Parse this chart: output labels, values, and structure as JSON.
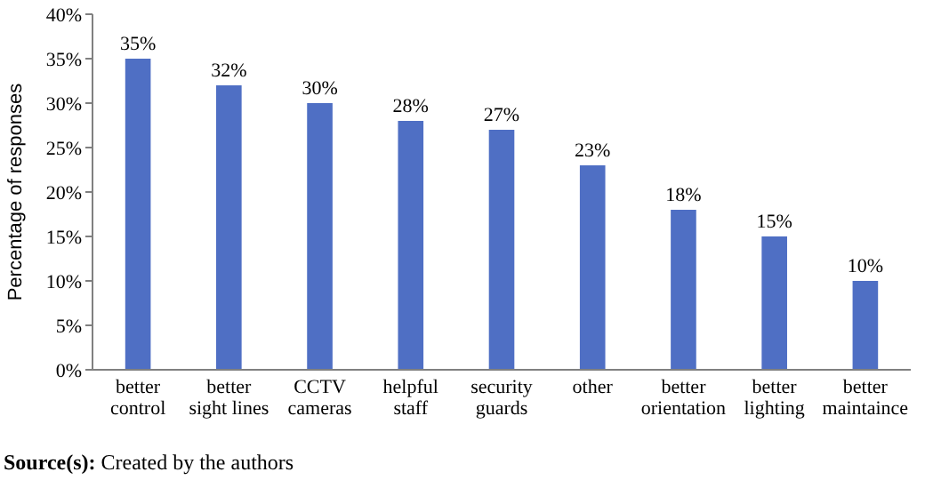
{
  "chart_data": {
    "type": "bar",
    "ylabel": "Percentage of responses",
    "categories": [
      "better control",
      "better sight lines",
      "CCTV cameras",
      "helpful staff",
      "security guards",
      "other",
      "better orientation",
      "better lighting",
      "better maintaince"
    ],
    "values": [
      35,
      32,
      30,
      28,
      27,
      23,
      18,
      15,
      10
    ],
    "value_labels": [
      "35%",
      "32%",
      "30%",
      "28%",
      "27%",
      "23%",
      "18%",
      "15%",
      "10%"
    ],
    "color": "#4f6fc4",
    "ylim": [
      0,
      40
    ],
    "yticks": [
      {
        "value": 0,
        "label": "0%"
      },
      {
        "value": 5,
        "label": "5%"
      },
      {
        "value": 10,
        "label": "10%"
      },
      {
        "value": 15,
        "label": "15%"
      },
      {
        "value": 20,
        "label": "20%"
      },
      {
        "value": 25,
        "label": "25%"
      },
      {
        "value": 30,
        "label": "30%"
      },
      {
        "value": 35,
        "label": "35%"
      },
      {
        "value": 40,
        "label": "40%"
      }
    ],
    "grid": false,
    "annotations": [
      "Source(s): Created by the authors"
    ]
  }
}
